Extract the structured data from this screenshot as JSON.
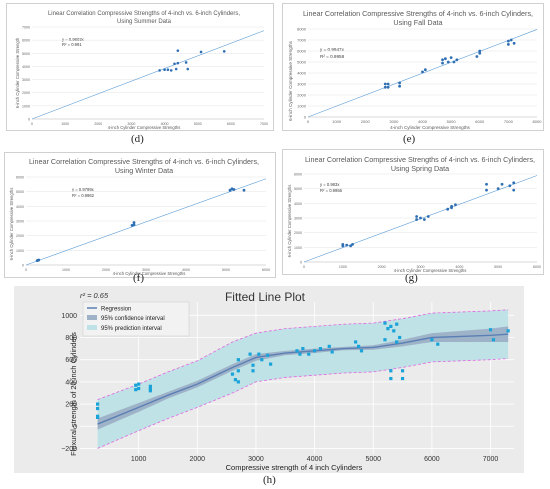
{
  "charts": {
    "d": {
      "panel_label": "(d)",
      "title_line1": "Linear Correlation Compressive Strengths of 4-inch vs. 6-inch Cylinders,",
      "title_line2": "Using Summer Data",
      "xlabel": "4-inch Cylinder Compressive Strengths",
      "ylabel": "6-inch Cylinder Compressive Strength",
      "eq": "y = 0.9603x",
      "r2": "R² = 0.991",
      "xticks": [
        "0",
        "1000",
        "2000",
        "3000",
        "4000",
        "5000",
        "6000",
        "7000"
      ],
      "yticks": [
        "0",
        "1000",
        "2000",
        "3000",
        "4000",
        "5000",
        "6000",
        "7000"
      ]
    },
    "e": {
      "panel_label": "(e)",
      "title_line1": "Linear Correlation Compressive Strengths of 4-inch vs. 6-inch Cylinders,",
      "title_line2": "Using Fall Data",
      "xlabel": "4-inch Cylinder Compressive Strengths",
      "ylabel": "6-inch Cylinder Compressive Strengths",
      "eq": "y = 0.9947x",
      "r2": "R² = 0.9958",
      "xticks": [
        "0",
        "1000",
        "2000",
        "3000",
        "4000",
        "5000",
        "6000",
        "7000",
        "8000"
      ],
      "yticks": [
        "0",
        "1000",
        "2000",
        "3000",
        "4000",
        "5000",
        "6000",
        "7000",
        "8000"
      ]
    },
    "f": {
      "panel_label": "(f)",
      "title_line1": "Linear Correlation Compressive Strengths of 4-inch vs. 6-inch Cylinders,",
      "title_line2": "Using Winter Data",
      "xlabel": "4-inch Cylinder Compressive Strengths",
      "ylabel": "6-inch Cylinder Compressive Strengths",
      "eq": "y = 0.9799x",
      "r2": "R² = 0.9962",
      "xticks": [
        "0",
        "1000",
        "2000",
        "3000",
        "4000",
        "5000",
        "6000"
      ],
      "yticks": [
        "0",
        "1000",
        "2000",
        "3000",
        "4000",
        "5000",
        "6000"
      ]
    },
    "g": {
      "panel_label": "(g)",
      "title_line1": "Linear Correlation Compressive Strengths of 4-inch vs. 6-inch Cylinders,",
      "title_line2": "Using Spring Data",
      "xlabel": "4-inch Cylinder Compressive Strengths",
      "ylabel": "6-inch Cylinder Compressive Strengths",
      "eq": "y = 0.983x",
      "r2": "R² = 0.9956",
      "xticks": [
        "0",
        "1000",
        "2000",
        "3000",
        "4000",
        "5000",
        "6000"
      ],
      "yticks": [
        "0",
        "1000",
        "2000",
        "3000",
        "4000",
        "5000",
        "6000"
      ]
    },
    "h": {
      "panel_label": "(h)",
      "title": "Fitted Line Plot",
      "r2": "r² = 0.65",
      "xlabel": "Compressive strength of 4 inch Cylinders",
      "ylabel": "Flexural strength of 20 inch Cylinders",
      "legend": [
        "Regression",
        "95% confidence interval",
        "95% prediction interval"
      ],
      "xticks": [
        "1000",
        "2000",
        "3000",
        "4000",
        "5000",
        "6000",
        "7000"
      ],
      "yticks": [
        "−200",
        "0",
        "200",
        "400",
        "600",
        "800",
        "1000"
      ]
    }
  },
  "colors": {
    "marker": "#2f6fb3",
    "fit_line": "#5b9bd5",
    "h_bg": "#ebebeb",
    "h_points": "#1aa3d9",
    "h_regression": "#5a7fb5",
    "h_conf": "#9fb3c8",
    "h_pred_fill": "#bfe2e6",
    "h_pred_line": "#e066e0"
  },
  "chart_data": [
    {
      "type": "scatter",
      "title": "Linear Correlation Compressive Strengths of 4-inch vs. 6-inch Cylinders, Using Summer Data",
      "xlabel": "4-inch Cylinder Compressive Strengths",
      "ylabel": "6-inch Cylinder Compressive Strength",
      "xlim": [
        0,
        7000
      ],
      "ylim": [
        0,
        7000
      ],
      "fit_slope": 0.9603,
      "x": [
        3850,
        4000,
        4100,
        4200,
        4300,
        4350,
        4400,
        4400,
        4650,
        4700,
        5100,
        5800
      ],
      "y": [
        3700,
        3750,
        3750,
        3700,
        4200,
        3800,
        4250,
        5200,
        4300,
        3800,
        5100,
        5150
      ]
    },
    {
      "type": "scatter",
      "title": "Linear Correlation Compressive Strengths of 4-inch vs. 6-inch Cylinders, Using Fall Data",
      "xlabel": "4-inch Cylinder Compressive Strengths",
      "ylabel": "6-inch Cylinder Compressive Strengths",
      "xlim": [
        0,
        8000
      ],
      "ylim": [
        0,
        8000
      ],
      "fit_slope": 0.9947,
      "x": [
        2700,
        2700,
        2800,
        2800,
        3200,
        3200,
        4000,
        4100,
        4700,
        4700,
        4800,
        4900,
        5000,
        5100,
        5200,
        5900,
        6000,
        6000,
        7000,
        7000,
        7100,
        7200
      ],
      "y": [
        2700,
        3000,
        2700,
        3000,
        2800,
        3100,
        4100,
        4300,
        4900,
        5200,
        5300,
        5000,
        5400,
        5000,
        5200,
        5500,
        5800,
        6000,
        6600,
        6900,
        7000,
        6700
      ]
    },
    {
      "type": "scatter",
      "title": "Linear Correlation Compressive Strengths of 4-inch vs. 6-inch Cylinders, Using Winter Data",
      "xlabel": "4-inch Cylinder Compressive Strengths",
      "ylabel": "6-inch Cylinder Compressive Strengths",
      "xlim": [
        0,
        6000
      ],
      "ylim": [
        0,
        6000
      ],
      "fit_slope": 0.9799,
      "x": [
        280,
        300,
        320,
        2650,
        2700,
        2700,
        5100,
        5150,
        5200,
        5450
      ],
      "y": [
        300,
        320,
        340,
        2700,
        2750,
        2900,
        5100,
        5200,
        5150,
        5100
      ]
    },
    {
      "type": "scatter",
      "title": "Linear Correlation Compressive Strengths of 4-inch vs. 6-inch Cylinders, Using Spring Data",
      "xlabel": "4-inch Cylinder Compressive Strengths",
      "ylabel": "6-inch Cylinder Compressive Strengths",
      "xlim": [
        0,
        6000
      ],
      "ylim": [
        0,
        6000
      ],
      "fit_slope": 0.983,
      "x": [
        1000,
        1000,
        1100,
        1200,
        1250,
        2900,
        2900,
        3000,
        3100,
        3200,
        3700,
        3800,
        3800,
        3900,
        4700,
        4700,
        5000,
        5100,
        5300,
        5400,
        5400
      ],
      "y": [
        1100,
        1200,
        1150,
        1100,
        1200,
        2900,
        3100,
        3000,
        2900,
        3100,
        3600,
        3800,
        3700,
        3900,
        4900,
        5300,
        5000,
        5300,
        5200,
        4900,
        5400
      ]
    },
    {
      "type": "scatter",
      "title": "Fitted Line Plot",
      "xlabel": "Compressive strength of 4 inch Cylinders",
      "ylabel": "Flexural strength of 20 inch Cylinders",
      "r2": 0.65,
      "xlim": [
        0,
        7400
      ],
      "ylim": [
        -250,
        1120
      ],
      "x": [
        300,
        300,
        300,
        300,
        950,
        950,
        1000,
        1000,
        1200,
        1200,
        1200,
        2600,
        2650,
        2700,
        2700,
        2700,
        2900,
        2950,
        2950,
        3050,
        3100,
        3200,
        3250,
        3700,
        3750,
        3800,
        3900,
        4000,
        4100,
        4250,
        4300,
        4700,
        4750,
        4800,
        5200,
        5200,
        5250,
        5300,
        5300,
        5300,
        5350,
        5400,
        5400,
        5450,
        5500,
        5500,
        6000,
        6100,
        7000,
        7050,
        7300
      ],
      "y": [
        200,
        160,
        90,
        80,
        370,
        330,
        380,
        340,
        360,
        320,
        340,
        470,
        420,
        400,
        500,
        600,
        650,
        550,
        500,
        650,
        600,
        640,
        560,
        680,
        650,
        700,
        650,
        680,
        700,
        720,
        670,
        760,
        720,
        680,
        930,
        780,
        880,
        500,
        430,
        900,
        860,
        760,
        920,
        800,
        500,
        430,
        780,
        740,
        870,
        780,
        860
      ],
      "regression": {
        "x": [
          300,
          1000,
          1500,
          2000,
          2600,
          3000,
          3500,
          4000,
          4500,
          5000,
          5500,
          6000,
          6500,
          7000,
          7300
        ],
        "y": [
          20,
          170,
          280,
          380,
          530,
          620,
          660,
          680,
          700,
          710,
          750,
          800,
          810,
          820,
          830
        ]
      },
      "conf_upper": [
        70,
        210,
        310,
        410,
        560,
        650,
        680,
        700,
        715,
        730,
        780,
        840,
        860,
        880,
        900
      ],
      "conf_lower": [
        -30,
        130,
        250,
        350,
        500,
        590,
        640,
        660,
        685,
        690,
        720,
        760,
        760,
        760,
        760
      ],
      "pred_upper": [
        240,
        380,
        490,
        590,
        760,
        840,
        880,
        900,
        920,
        930,
        970,
        1020,
        1030,
        1040,
        1050
      ],
      "pred_lower": [
        -200,
        -40,
        70,
        170,
        300,
        400,
        440,
        460,
        480,
        490,
        530,
        580,
        590,
        600,
        610
      ]
    }
  ]
}
